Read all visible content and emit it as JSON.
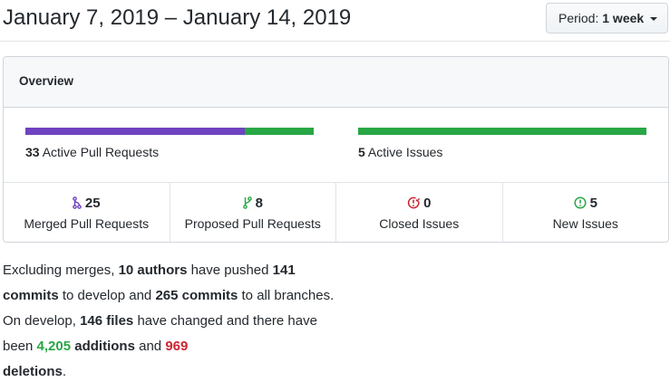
{
  "header": {
    "date_range": "January 7, 2019 – January 14, 2019",
    "period_label": "Period:",
    "period_value": "1 week"
  },
  "overview": {
    "title": "Overview",
    "pull_requests": {
      "count": "33",
      "label": "Active Pull Requests",
      "merged_fraction": 0.76
    },
    "issues": {
      "count": "5",
      "label": "Active Issues",
      "open_fraction": 1.0
    },
    "stats": [
      {
        "value": "25",
        "label": "Merged Pull Requests",
        "icon": "merged-pr-icon",
        "color": "#6f42c1"
      },
      {
        "value": "8",
        "label": "Proposed Pull Requests",
        "icon": "pull-request-icon",
        "color": "#28a745"
      },
      {
        "value": "0",
        "label": "Closed Issues",
        "icon": "closed-issue-icon",
        "color": "#cb2431"
      },
      {
        "value": "5",
        "label": "New Issues",
        "icon": "open-issue-icon",
        "color": "#28a745"
      }
    ]
  },
  "summary": {
    "t1": "Excluding merges, ",
    "authors": "10 authors",
    "t2": " have pushed ",
    "commits_develop": "141 commits",
    "t3": " to develop and ",
    "commits_all": "265 commits",
    "t4": " to all branches. On develop, ",
    "files": "146 files",
    "t5": " have changed and there have been ",
    "additions": "4,205",
    "t6": " additions",
    "t7": " and ",
    "deletions": "969",
    "t8": " deletions",
    "t9": "."
  },
  "colors": {
    "purple": "#6f42c1",
    "green": "#28a745",
    "red": "#cb2431"
  }
}
